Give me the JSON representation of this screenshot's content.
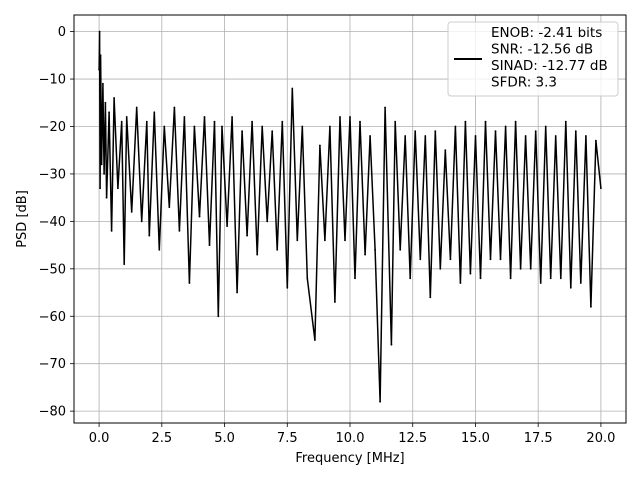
{
  "chart_data": {
    "type": "line",
    "title": "",
    "xlabel": "Frequency [MHz]",
    "ylabel": "PSD [dB]",
    "xlim": [
      -1.0,
      21.0
    ],
    "ylim": [
      -82.5,
      3.5
    ],
    "xticks": [
      0.0,
      2.5,
      5.0,
      7.5,
      10.0,
      12.5,
      15.0,
      17.5,
      20.0
    ],
    "xtick_labels": [
      "0.0",
      "2.5",
      "5.0",
      "7.5",
      "10.0",
      "12.5",
      "15.0",
      "17.5",
      "20.0"
    ],
    "yticks": [
      0,
      -10,
      -20,
      -30,
      -40,
      -50,
      -60,
      -70,
      -80
    ],
    "ytick_labels": [
      "0",
      "−10",
      "−20",
      "−30",
      "−40",
      "−50",
      "−60",
      "−70",
      "−80"
    ],
    "grid": true,
    "legend_placement": "top-right",
    "series": [
      {
        "color": "#000000",
        "x": [
          0.0,
          0.02,
          0.04,
          0.06,
          0.1,
          0.15,
          0.2,
          0.25,
          0.3,
          0.4,
          0.5,
          0.6,
          0.75,
          0.9,
          1.0,
          1.1,
          1.3,
          1.5,
          1.7,
          1.9,
          2.0,
          2.2,
          2.4,
          2.6,
          2.8,
          3.0,
          3.2,
          3.4,
          3.6,
          3.8,
          4.0,
          4.2,
          4.4,
          4.6,
          4.75,
          4.9,
          5.1,
          5.3,
          5.5,
          5.7,
          5.9,
          6.1,
          6.3,
          6.5,
          6.7,
          6.9,
          7.1,
          7.3,
          7.5,
          7.7,
          7.9,
          8.1,
          8.3,
          8.6,
          8.8,
          9.0,
          9.2,
          9.4,
          9.6,
          9.8,
          10.0,
          10.2,
          10.4,
          10.6,
          10.8,
          11.0,
          11.2,
          11.4,
          11.65,
          11.8,
          12.0,
          12.2,
          12.4,
          12.6,
          12.8,
          13.0,
          13.2,
          13.4,
          13.6,
          13.8,
          14.0,
          14.2,
          14.4,
          14.6,
          14.8,
          15.0,
          15.2,
          15.4,
          15.6,
          15.8,
          16.0,
          16.2,
          16.4,
          16.6,
          16.8,
          17.0,
          17.2,
          17.4,
          17.6,
          17.8,
          18.0,
          18.2,
          18.4,
          18.6,
          18.8,
          19.0,
          19.2,
          19.4,
          19.6,
          19.8,
          20.0
        ],
        "y": [
          -8,
          0,
          -33,
          -5,
          -28,
          -11,
          -30,
          -15,
          -35,
          -17,
          -42,
          -14,
          -33,
          -19,
          -49,
          -18,
          -38,
          -16,
          -40,
          -19,
          -43,
          -17,
          -46,
          -20,
          -37,
          -16,
          -42,
          -18,
          -53,
          -20,
          -39,
          -18,
          -45,
          -19,
          -60,
          -20,
          -41,
          -18,
          -55,
          -21,
          -43,
          -19,
          -47,
          -20,
          -40,
          -21,
          -46,
          -19,
          -54,
          -12,
          -44,
          -20,
          -52,
          -65,
          -24,
          -44,
          -20,
          -57,
          -18,
          -44,
          -18,
          -52,
          -19,
          -47,
          -22,
          -46,
          -78,
          -16,
          -66,
          -19,
          -46,
          -22,
          -52,
          -21,
          -48,
          -22,
          -56,
          -21,
          -50,
          -25,
          -48,
          -20,
          -53,
          -19,
          -51,
          -22,
          -52,
          -19,
          -48,
          -21,
          -48,
          -20,
          -52,
          -19,
          -50,
          -22,
          -50,
          -21,
          -53,
          -20,
          -52,
          -22,
          -52,
          -19,
          -54,
          -21,
          -53,
          -22,
          -58,
          -23,
          -33
        ]
      }
    ],
    "legend_lines": [
      "ENOB: -2.41 bits",
      "SNR: -12.56 dB",
      "SINAD: -12.77 dB",
      "SFDR: 3.3"
    ]
  }
}
